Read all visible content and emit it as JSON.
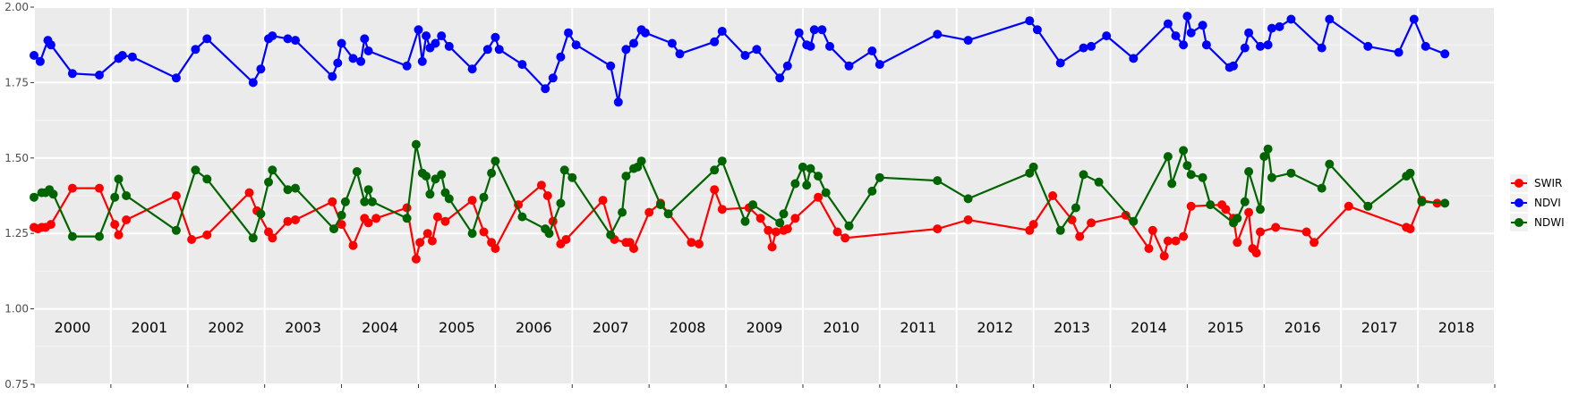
{
  "chart_data": {
    "type": "line",
    "title": "",
    "xlabel": "",
    "ylabel": "",
    "ylim": [
      0.75,
      2.0
    ],
    "y_ticks": [
      "0.75",
      "1.00",
      "1.25",
      "1.50",
      "1.75",
      "2.00"
    ],
    "grid": "on",
    "legend_position": "right",
    "panel_background": "#ebebeb",
    "years": [
      "2000",
      "2001",
      "2002",
      "2003",
      "2004",
      "2005",
      "2006",
      "2007",
      "2008",
      "2009",
      "2010",
      "2011",
      "2012",
      "2013",
      "2014",
      "2015",
      "2016",
      "2017",
      "2018"
    ],
    "series": [
      {
        "name": "SWIR",
        "color": "#ff0000",
        "points": [
          [
            2000.0,
            1.27
          ],
          [
            2000.05,
            1.265
          ],
          [
            2000.1,
            1.27
          ],
          [
            2000.15,
            1.27
          ],
          [
            2000.22,
            1.28
          ],
          [
            2000.5,
            1.4
          ],
          [
            2000.85,
            1.4
          ],
          [
            2001.05,
            1.28
          ],
          [
            2001.1,
            1.245
          ],
          [
            2001.2,
            1.295
          ],
          [
            2001.85,
            1.375
          ],
          [
            2002.05,
            1.23
          ],
          [
            2002.25,
            1.245
          ],
          [
            2002.8,
            1.385
          ],
          [
            2002.9,
            1.325
          ],
          [
            2003.05,
            1.255
          ],
          [
            2003.1,
            1.235
          ],
          [
            2003.3,
            1.29
          ],
          [
            2003.4,
            1.295
          ],
          [
            2003.88,
            1.355
          ],
          [
            2004.0,
            1.28
          ],
          [
            2004.15,
            1.21
          ],
          [
            2004.3,
            1.3
          ],
          [
            2004.35,
            1.285
          ],
          [
            2004.45,
            1.3
          ],
          [
            2004.85,
            1.335
          ],
          [
            2004.97,
            1.165
          ],
          [
            2005.02,
            1.22
          ],
          [
            2005.12,
            1.25
          ],
          [
            2005.18,
            1.225
          ],
          [
            2005.25,
            1.305
          ],
          [
            2005.35,
            1.29
          ],
          [
            2005.7,
            1.36
          ],
          [
            2005.85,
            1.255
          ],
          [
            2005.95,
            1.22
          ],
          [
            2006.0,
            1.2
          ],
          [
            2006.3,
            1.345
          ],
          [
            2006.6,
            1.41
          ],
          [
            2006.68,
            1.375
          ],
          [
            2006.75,
            1.29
          ],
          [
            2006.85,
            1.215
          ],
          [
            2006.92,
            1.23
          ],
          [
            2007.4,
            1.36
          ],
          [
            2007.55,
            1.23
          ],
          [
            2007.7,
            1.22
          ],
          [
            2007.75,
            1.22
          ],
          [
            2007.8,
            1.2
          ],
          [
            2008.0,
            1.32
          ],
          [
            2008.15,
            1.35
          ],
          [
            2008.55,
            1.22
          ],
          [
            2008.65,
            1.215
          ],
          [
            2008.85,
            1.395
          ],
          [
            2008.95,
            1.33
          ],
          [
            2009.3,
            1.335
          ],
          [
            2009.45,
            1.3
          ],
          [
            2009.55,
            1.26
          ],
          [
            2009.6,
            1.205
          ],
          [
            2009.65,
            1.255
          ],
          [
            2009.75,
            1.26
          ],
          [
            2009.8,
            1.265
          ],
          [
            2009.9,
            1.3
          ],
          [
            2010.2,
            1.37
          ],
          [
            2010.45,
            1.255
          ],
          [
            2010.55,
            1.235
          ],
          [
            2011.75,
            1.265
          ],
          [
            2012.15,
            1.295
          ],
          [
            2012.95,
            1.26
          ],
          [
            2013.0,
            1.28
          ],
          [
            2013.25,
            1.375
          ],
          [
            2013.5,
            1.295
          ],
          [
            2013.6,
            1.24
          ],
          [
            2013.75,
            1.285
          ],
          [
            2014.2,
            1.31
          ],
          [
            2014.5,
            1.2
          ],
          [
            2014.55,
            1.26
          ],
          [
            2014.7,
            1.175
          ],
          [
            2014.75,
            1.225
          ],
          [
            2014.85,
            1.225
          ],
          [
            2014.95,
            1.24
          ],
          [
            2015.05,
            1.34
          ],
          [
            2015.45,
            1.345
          ],
          [
            2015.5,
            1.33
          ],
          [
            2015.6,
            1.3
          ],
          [
            2015.65,
            1.22
          ],
          [
            2015.8,
            1.32
          ],
          [
            2015.85,
            1.2
          ],
          [
            2015.9,
            1.185
          ],
          [
            2015.95,
            1.255
          ],
          [
            2016.15,
            1.27
          ],
          [
            2016.55,
            1.255
          ],
          [
            2016.65,
            1.22
          ],
          [
            2017.1,
            1.34
          ],
          [
            2017.85,
            1.27
          ],
          [
            2017.9,
            1.265
          ],
          [
            2018.05,
            1.36
          ],
          [
            2018.25,
            1.35
          ]
        ]
      },
      {
        "name": "NDVI",
        "color": "#0000ff",
        "points": [
          [
            2000.0,
            1.84
          ],
          [
            2000.08,
            1.82
          ],
          [
            2000.18,
            1.89
          ],
          [
            2000.22,
            1.875
          ],
          [
            2000.5,
            1.78
          ],
          [
            2000.85,
            1.775
          ],
          [
            2001.1,
            1.83
          ],
          [
            2001.15,
            1.84
          ],
          [
            2001.28,
            1.835
          ],
          [
            2001.85,
            1.765
          ],
          [
            2002.1,
            1.86
          ],
          [
            2002.25,
            1.895
          ],
          [
            2002.85,
            1.75
          ],
          [
            2002.95,
            1.795
          ],
          [
            2003.05,
            1.895
          ],
          [
            2003.1,
            1.905
          ],
          [
            2003.3,
            1.895
          ],
          [
            2003.4,
            1.89
          ],
          [
            2003.88,
            1.77
          ],
          [
            2003.95,
            1.815
          ],
          [
            2004.0,
            1.88
          ],
          [
            2004.15,
            1.83
          ],
          [
            2004.25,
            1.82
          ],
          [
            2004.3,
            1.895
          ],
          [
            2004.35,
            1.855
          ],
          [
            2004.85,
            1.805
          ],
          [
            2005.0,
            1.925
          ],
          [
            2005.05,
            1.82
          ],
          [
            2005.1,
            1.905
          ],
          [
            2005.15,
            1.865
          ],
          [
            2005.22,
            1.88
          ],
          [
            2005.3,
            1.905
          ],
          [
            2005.4,
            1.87
          ],
          [
            2005.7,
            1.795
          ],
          [
            2005.9,
            1.86
          ],
          [
            2006.0,
            1.9
          ],
          [
            2006.05,
            1.86
          ],
          [
            2006.35,
            1.81
          ],
          [
            2006.65,
            1.73
          ],
          [
            2006.75,
            1.765
          ],
          [
            2006.85,
            1.835
          ],
          [
            2006.95,
            1.915
          ],
          [
            2007.05,
            1.875
          ],
          [
            2007.5,
            1.805
          ],
          [
            2007.6,
            1.685
          ],
          [
            2007.7,
            1.86
          ],
          [
            2007.8,
            1.88
          ],
          [
            2007.9,
            1.925
          ],
          [
            2007.95,
            1.915
          ],
          [
            2008.3,
            1.88
          ],
          [
            2008.4,
            1.845
          ],
          [
            2008.85,
            1.885
          ],
          [
            2008.95,
            1.92
          ],
          [
            2009.25,
            1.84
          ],
          [
            2009.4,
            1.86
          ],
          [
            2009.7,
            1.765
          ],
          [
            2009.8,
            1.805
          ],
          [
            2009.95,
            1.915
          ],
          [
            2010.05,
            1.875
          ],
          [
            2010.1,
            1.87
          ],
          [
            2010.15,
            1.925
          ],
          [
            2010.25,
            1.925
          ],
          [
            2010.35,
            1.87
          ],
          [
            2010.6,
            1.805
          ],
          [
            2010.9,
            1.855
          ],
          [
            2011.0,
            1.81
          ],
          [
            2011.75,
            1.91
          ],
          [
            2012.15,
            1.89
          ],
          [
            2012.95,
            1.955
          ],
          [
            2013.05,
            1.925
          ],
          [
            2013.35,
            1.815
          ],
          [
            2013.65,
            1.865
          ],
          [
            2013.75,
            1.87
          ],
          [
            2013.95,
            1.905
          ],
          [
            2014.3,
            1.83
          ],
          [
            2014.75,
            1.945
          ],
          [
            2014.85,
            1.905
          ],
          [
            2014.95,
            1.875
          ],
          [
            2015.0,
            1.97
          ],
          [
            2015.05,
            1.915
          ],
          [
            2015.2,
            1.94
          ],
          [
            2015.25,
            1.875
          ],
          [
            2015.55,
            1.8
          ],
          [
            2015.6,
            1.805
          ],
          [
            2015.75,
            1.865
          ],
          [
            2015.8,
            1.915
          ],
          [
            2015.95,
            1.87
          ],
          [
            2016.05,
            1.875
          ],
          [
            2016.1,
            1.93
          ],
          [
            2016.2,
            1.935
          ],
          [
            2016.35,
            1.96
          ],
          [
            2016.75,
            1.865
          ],
          [
            2016.85,
            1.96
          ],
          [
            2017.35,
            1.87
          ],
          [
            2017.75,
            1.85
          ],
          [
            2017.95,
            1.96
          ],
          [
            2018.1,
            1.87
          ],
          [
            2018.35,
            1.845
          ]
        ]
      },
      {
        "name": "NDWI",
        "color": "#006400",
        "points": [
          [
            2000.0,
            1.37
          ],
          [
            2000.1,
            1.385
          ],
          [
            2000.15,
            1.385
          ],
          [
            2000.2,
            1.395
          ],
          [
            2000.25,
            1.38
          ],
          [
            2000.5,
            1.24
          ],
          [
            2000.85,
            1.24
          ],
          [
            2001.05,
            1.37
          ],
          [
            2001.1,
            1.43
          ],
          [
            2001.2,
            1.375
          ],
          [
            2001.85,
            1.26
          ],
          [
            2002.1,
            1.46
          ],
          [
            2002.25,
            1.43
          ],
          [
            2002.85,
            1.235
          ],
          [
            2002.95,
            1.315
          ],
          [
            2003.05,
            1.42
          ],
          [
            2003.1,
            1.46
          ],
          [
            2003.3,
            1.395
          ],
          [
            2003.4,
            1.4
          ],
          [
            2003.9,
            1.265
          ],
          [
            2004.0,
            1.31
          ],
          [
            2004.05,
            1.355
          ],
          [
            2004.2,
            1.455
          ],
          [
            2004.3,
            1.355
          ],
          [
            2004.35,
            1.395
          ],
          [
            2004.4,
            1.355
          ],
          [
            2004.85,
            1.3
          ],
          [
            2004.97,
            1.545
          ],
          [
            2005.05,
            1.45
          ],
          [
            2005.1,
            1.44
          ],
          [
            2005.15,
            1.38
          ],
          [
            2005.22,
            1.43
          ],
          [
            2005.3,
            1.445
          ],
          [
            2005.35,
            1.385
          ],
          [
            2005.4,
            1.365
          ],
          [
            2005.7,
            1.25
          ],
          [
            2005.85,
            1.37
          ],
          [
            2005.95,
            1.45
          ],
          [
            2006.0,
            1.49
          ],
          [
            2006.35,
            1.305
          ],
          [
            2006.65,
            1.265
          ],
          [
            2006.7,
            1.25
          ],
          [
            2006.85,
            1.35
          ],
          [
            2006.9,
            1.46
          ],
          [
            2007.0,
            1.435
          ],
          [
            2007.5,
            1.245
          ],
          [
            2007.65,
            1.32
          ],
          [
            2007.7,
            1.44
          ],
          [
            2007.8,
            1.465
          ],
          [
            2007.85,
            1.47
          ],
          [
            2007.9,
            1.49
          ],
          [
            2008.15,
            1.345
          ],
          [
            2008.25,
            1.315
          ],
          [
            2008.85,
            1.46
          ],
          [
            2008.95,
            1.49
          ],
          [
            2009.25,
            1.29
          ],
          [
            2009.35,
            1.345
          ],
          [
            2009.7,
            1.285
          ],
          [
            2009.75,
            1.315
          ],
          [
            2009.9,
            1.415
          ],
          [
            2010.0,
            1.47
          ],
          [
            2010.05,
            1.41
          ],
          [
            2010.1,
            1.465
          ],
          [
            2010.2,
            1.44
          ],
          [
            2010.3,
            1.385
          ],
          [
            2010.6,
            1.275
          ],
          [
            2010.9,
            1.39
          ],
          [
            2011.0,
            1.435
          ],
          [
            2011.75,
            1.425
          ],
          [
            2012.15,
            1.365
          ],
          [
            2012.95,
            1.45
          ],
          [
            2013.0,
            1.47
          ],
          [
            2013.35,
            1.26
          ],
          [
            2013.55,
            1.335
          ],
          [
            2013.65,
            1.445
          ],
          [
            2013.85,
            1.42
          ],
          [
            2014.3,
            1.29
          ],
          [
            2014.75,
            1.505
          ],
          [
            2014.8,
            1.415
          ],
          [
            2014.95,
            1.525
          ],
          [
            2015.0,
            1.475
          ],
          [
            2015.05,
            1.445
          ],
          [
            2015.2,
            1.435
          ],
          [
            2015.3,
            1.345
          ],
          [
            2015.6,
            1.285
          ],
          [
            2015.65,
            1.3
          ],
          [
            2015.75,
            1.355
          ],
          [
            2015.8,
            1.455
          ],
          [
            2015.95,
            1.33
          ],
          [
            2016.0,
            1.505
          ],
          [
            2016.05,
            1.53
          ],
          [
            2016.1,
            1.435
          ],
          [
            2016.35,
            1.45
          ],
          [
            2016.75,
            1.4
          ],
          [
            2016.85,
            1.48
          ],
          [
            2017.35,
            1.34
          ],
          [
            2017.85,
            1.44
          ],
          [
            2017.9,
            1.45
          ],
          [
            2018.05,
            1.355
          ],
          [
            2018.35,
            1.35
          ]
        ]
      }
    ]
  }
}
